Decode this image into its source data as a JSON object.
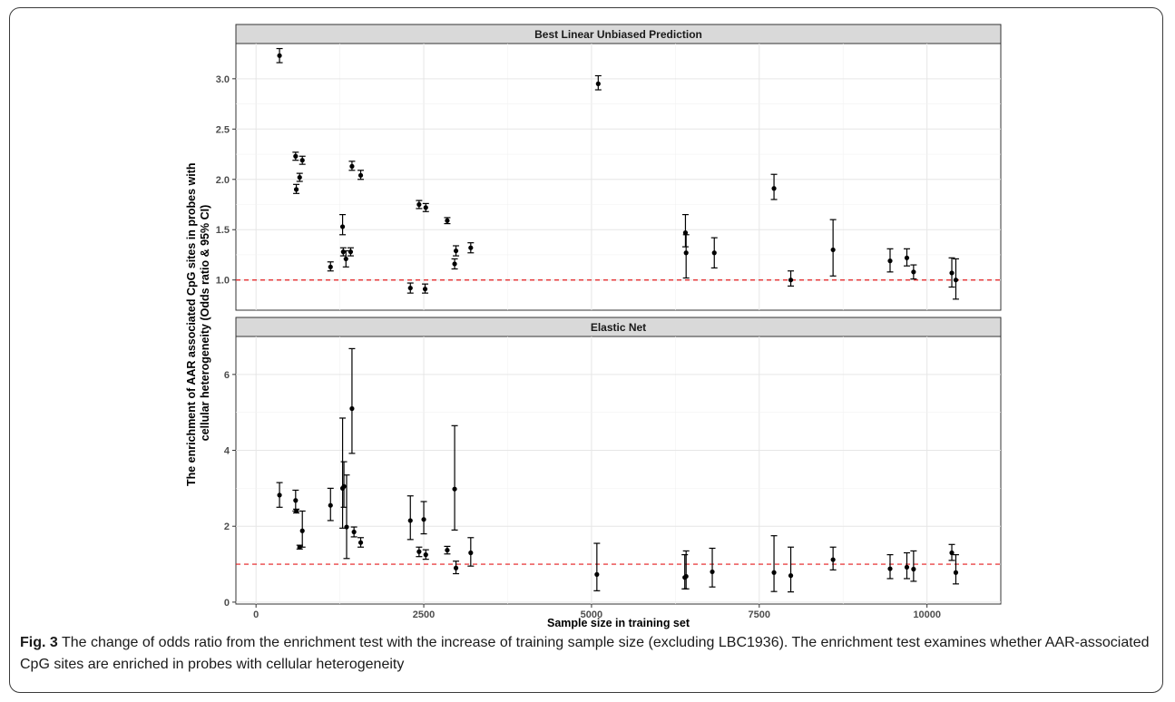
{
  "chart_data": {
    "type": "scatter",
    "x_label": "Sample size in training set",
    "y_label_lines": [
      "The enrichment of AAR associated CpG sites in probes with",
      "cellular heterogeneity (Odds ratio & 95% CI)"
    ],
    "x_range": [
      -300,
      11100
    ],
    "x_ticks": [
      0,
      2500,
      5000,
      7500,
      10000
    ],
    "x_tick_labels": [
      "0",
      "2500",
      "5000",
      "7500",
      "10000"
    ],
    "reference_line": 1.0,
    "reference_line_color": "#e41a1c",
    "grid": true,
    "panels": [
      {
        "title": "Best Linear Unbiased Prediction",
        "y_range": [
          0.7,
          3.35
        ],
        "y_ticks": [
          1.0,
          1.5,
          2.0,
          2.5,
          3.0
        ],
        "y_tick_labels": [
          "1.0",
          "1.5",
          "2.0",
          "2.5",
          "3.0"
        ],
        "points": [
          {
            "x": 350,
            "y": 3.23,
            "lo": 3.16,
            "hi": 3.3
          },
          {
            "x": 590,
            "y": 2.23,
            "lo": 2.19,
            "hi": 2.27
          },
          {
            "x": 600,
            "y": 1.9,
            "lo": 1.86,
            "hi": 1.95
          },
          {
            "x": 650,
            "y": 2.02,
            "lo": 1.98,
            "hi": 2.06
          },
          {
            "x": 690,
            "y": 2.19,
            "lo": 2.15,
            "hi": 2.23
          },
          {
            "x": 1110,
            "y": 1.13,
            "lo": 1.09,
            "hi": 1.18
          },
          {
            "x": 1290,
            "y": 1.53,
            "lo": 1.45,
            "hi": 1.65
          },
          {
            "x": 1300,
            "y": 1.28,
            "lo": 1.24,
            "hi": 1.32
          },
          {
            "x": 1340,
            "y": 1.21,
            "lo": 1.13,
            "hi": 1.29
          },
          {
            "x": 1410,
            "y": 1.28,
            "lo": 1.24,
            "hi": 1.32
          },
          {
            "x": 1430,
            "y": 2.13,
            "lo": 2.09,
            "hi": 2.18
          },
          {
            "x": 1560,
            "y": 2.04,
            "lo": 2.0,
            "hi": 2.09
          },
          {
            "x": 2300,
            "y": 0.92,
            "lo": 0.87,
            "hi": 0.97
          },
          {
            "x": 2430,
            "y": 1.75,
            "lo": 1.71,
            "hi": 1.79
          },
          {
            "x": 2520,
            "y": 0.91,
            "lo": 0.87,
            "hi": 0.96
          },
          {
            "x": 2530,
            "y": 1.72,
            "lo": 1.68,
            "hi": 1.76
          },
          {
            "x": 2850,
            "y": 1.59,
            "lo": 1.56,
            "hi": 1.62
          },
          {
            "x": 2960,
            "y": 1.16,
            "lo": 1.11,
            "hi": 1.21
          },
          {
            "x": 2980,
            "y": 1.29,
            "lo": 1.24,
            "hi": 1.34
          },
          {
            "x": 3200,
            "y": 1.32,
            "lo": 1.27,
            "hi": 1.37
          },
          {
            "x": 5100,
            "y": 2.95,
            "lo": 2.89,
            "hi": 3.03
          },
          {
            "x": 6400,
            "y": 1.47,
            "lo": 1.33,
            "hi": 1.65
          },
          {
            "x": 6410,
            "y": 1.27,
            "lo": 1.02,
            "hi": 1.45
          },
          {
            "x": 6830,
            "y": 1.27,
            "lo": 1.12,
            "hi": 1.42
          },
          {
            "x": 7720,
            "y": 1.91,
            "lo": 1.8,
            "hi": 2.05
          },
          {
            "x": 7970,
            "y": 1.0,
            "lo": 0.94,
            "hi": 1.09
          },
          {
            "x": 8600,
            "y": 1.3,
            "lo": 1.04,
            "hi": 1.6
          },
          {
            "x": 9450,
            "y": 1.19,
            "lo": 1.08,
            "hi": 1.31
          },
          {
            "x": 9700,
            "y": 1.22,
            "lo": 1.14,
            "hi": 1.31
          },
          {
            "x": 9800,
            "y": 1.08,
            "lo": 1.01,
            "hi": 1.15
          },
          {
            "x": 10370,
            "y": 1.07,
            "lo": 0.93,
            "hi": 1.22
          },
          {
            "x": 10430,
            "y": 1.0,
            "lo": 0.81,
            "hi": 1.21
          }
        ]
      },
      {
        "title": "Elastic Net",
        "y_range": [
          -0.05,
          7.0
        ],
        "y_ticks": [
          0,
          2,
          4,
          6
        ],
        "y_tick_labels": [
          "0",
          "2",
          "4",
          "6"
        ],
        "points": [
          {
            "x": 350,
            "y": 2.82,
            "lo": 2.5,
            "hi": 3.15
          },
          {
            "x": 590,
            "y": 2.68,
            "lo": 2.4,
            "hi": 2.95
          },
          {
            "x": 600,
            "y": 2.4,
            "lo": 2.35,
            "hi": 2.45
          },
          {
            "x": 650,
            "y": 1.45,
            "lo": 1.4,
            "hi": 1.5
          },
          {
            "x": 690,
            "y": 1.88,
            "lo": 1.45,
            "hi": 2.4
          },
          {
            "x": 1110,
            "y": 2.55,
            "lo": 2.15,
            "hi": 3.0
          },
          {
            "x": 1290,
            "y": 3.0,
            "lo": 1.95,
            "hi": 4.85
          },
          {
            "x": 1310,
            "y": 3.05,
            "lo": 2.5,
            "hi": 3.7
          },
          {
            "x": 1350,
            "y": 1.98,
            "lo": 1.15,
            "hi": 3.35
          },
          {
            "x": 1430,
            "y": 5.1,
            "lo": 3.92,
            "hi": 6.68
          },
          {
            "x": 1460,
            "y": 1.85,
            "lo": 1.72,
            "hi": 1.98
          },
          {
            "x": 1560,
            "y": 1.57,
            "lo": 1.45,
            "hi": 1.7
          },
          {
            "x": 2300,
            "y": 2.15,
            "lo": 1.65,
            "hi": 2.8
          },
          {
            "x": 2430,
            "y": 1.33,
            "lo": 1.2,
            "hi": 1.45
          },
          {
            "x": 2500,
            "y": 2.18,
            "lo": 1.8,
            "hi": 2.65
          },
          {
            "x": 2530,
            "y": 1.25,
            "lo": 1.13,
            "hi": 1.38
          },
          {
            "x": 2850,
            "y": 1.37,
            "lo": 1.27,
            "hi": 1.47
          },
          {
            "x": 2960,
            "y": 2.98,
            "lo": 1.9,
            "hi": 4.65
          },
          {
            "x": 2980,
            "y": 0.9,
            "lo": 0.75,
            "hi": 1.08
          },
          {
            "x": 3200,
            "y": 1.3,
            "lo": 0.95,
            "hi": 1.7
          },
          {
            "x": 5080,
            "y": 0.73,
            "lo": 0.3,
            "hi": 1.55
          },
          {
            "x": 6390,
            "y": 0.65,
            "lo": 0.35,
            "hi": 1.25
          },
          {
            "x": 6410,
            "y": 0.68,
            "lo": 0.35,
            "hi": 1.35
          },
          {
            "x": 6800,
            "y": 0.8,
            "lo": 0.4,
            "hi": 1.42
          },
          {
            "x": 7720,
            "y": 0.78,
            "lo": 0.28,
            "hi": 1.75
          },
          {
            "x": 7970,
            "y": 0.7,
            "lo": 0.27,
            "hi": 1.45
          },
          {
            "x": 8600,
            "y": 1.12,
            "lo": 0.85,
            "hi": 1.45
          },
          {
            "x": 9450,
            "y": 0.88,
            "lo": 0.62,
            "hi": 1.25
          },
          {
            "x": 9700,
            "y": 0.92,
            "lo": 0.62,
            "hi": 1.3
          },
          {
            "x": 9800,
            "y": 0.87,
            "lo": 0.55,
            "hi": 1.35
          },
          {
            "x": 10370,
            "y": 1.3,
            "lo": 1.1,
            "hi": 1.52
          },
          {
            "x": 10430,
            "y": 0.78,
            "lo": 0.48,
            "hi": 1.25
          }
        ]
      }
    ]
  },
  "caption": {
    "label": "Fig. 3",
    "text": "The change of odds ratio from the enrichment test with the increase of training sample size (excluding LBC1936). The enrichment test examines whether AAR-associated CpG sites are enriched in probes with cellular heterogeneity"
  }
}
